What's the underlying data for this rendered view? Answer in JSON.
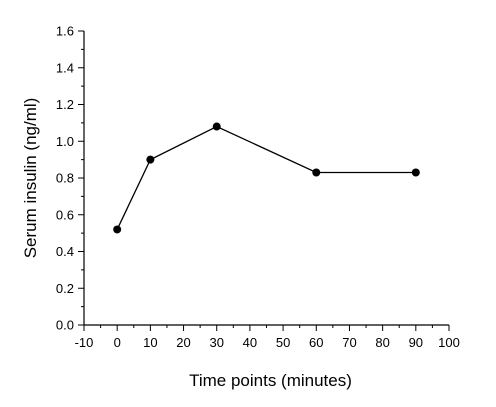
{
  "chart_data": {
    "type": "line",
    "title": "",
    "xlabel": "Time points (minutes)",
    "ylabel": "Serum insulin (ng/ml)",
    "xlim": [
      -10,
      100
    ],
    "ylim": [
      0.0,
      1.6
    ],
    "x_ticks": [
      -10,
      0,
      10,
      20,
      30,
      40,
      50,
      60,
      70,
      80,
      90,
      100
    ],
    "x_tick_labels": [
      "-10",
      "0",
      "10",
      "20",
      "30",
      "40",
      "50",
      "60",
      "70",
      "80",
      "90",
      "100"
    ],
    "y_ticks": [
      0.0,
      0.2,
      0.4,
      0.6,
      0.8,
      1.0,
      1.2,
      1.4,
      1.6
    ],
    "y_tick_labels": [
      "0.0",
      "0.2",
      "0.4",
      "0.6",
      "0.8",
      "1.0",
      "1.2",
      "1.4",
      "1.6"
    ],
    "grid": false,
    "legend": "none",
    "series": [
      {
        "x": [
          0,
          10,
          30,
          60,
          90
        ],
        "y": [
          0.52,
          0.9,
          1.08,
          0.83,
          0.83
        ]
      }
    ]
  }
}
